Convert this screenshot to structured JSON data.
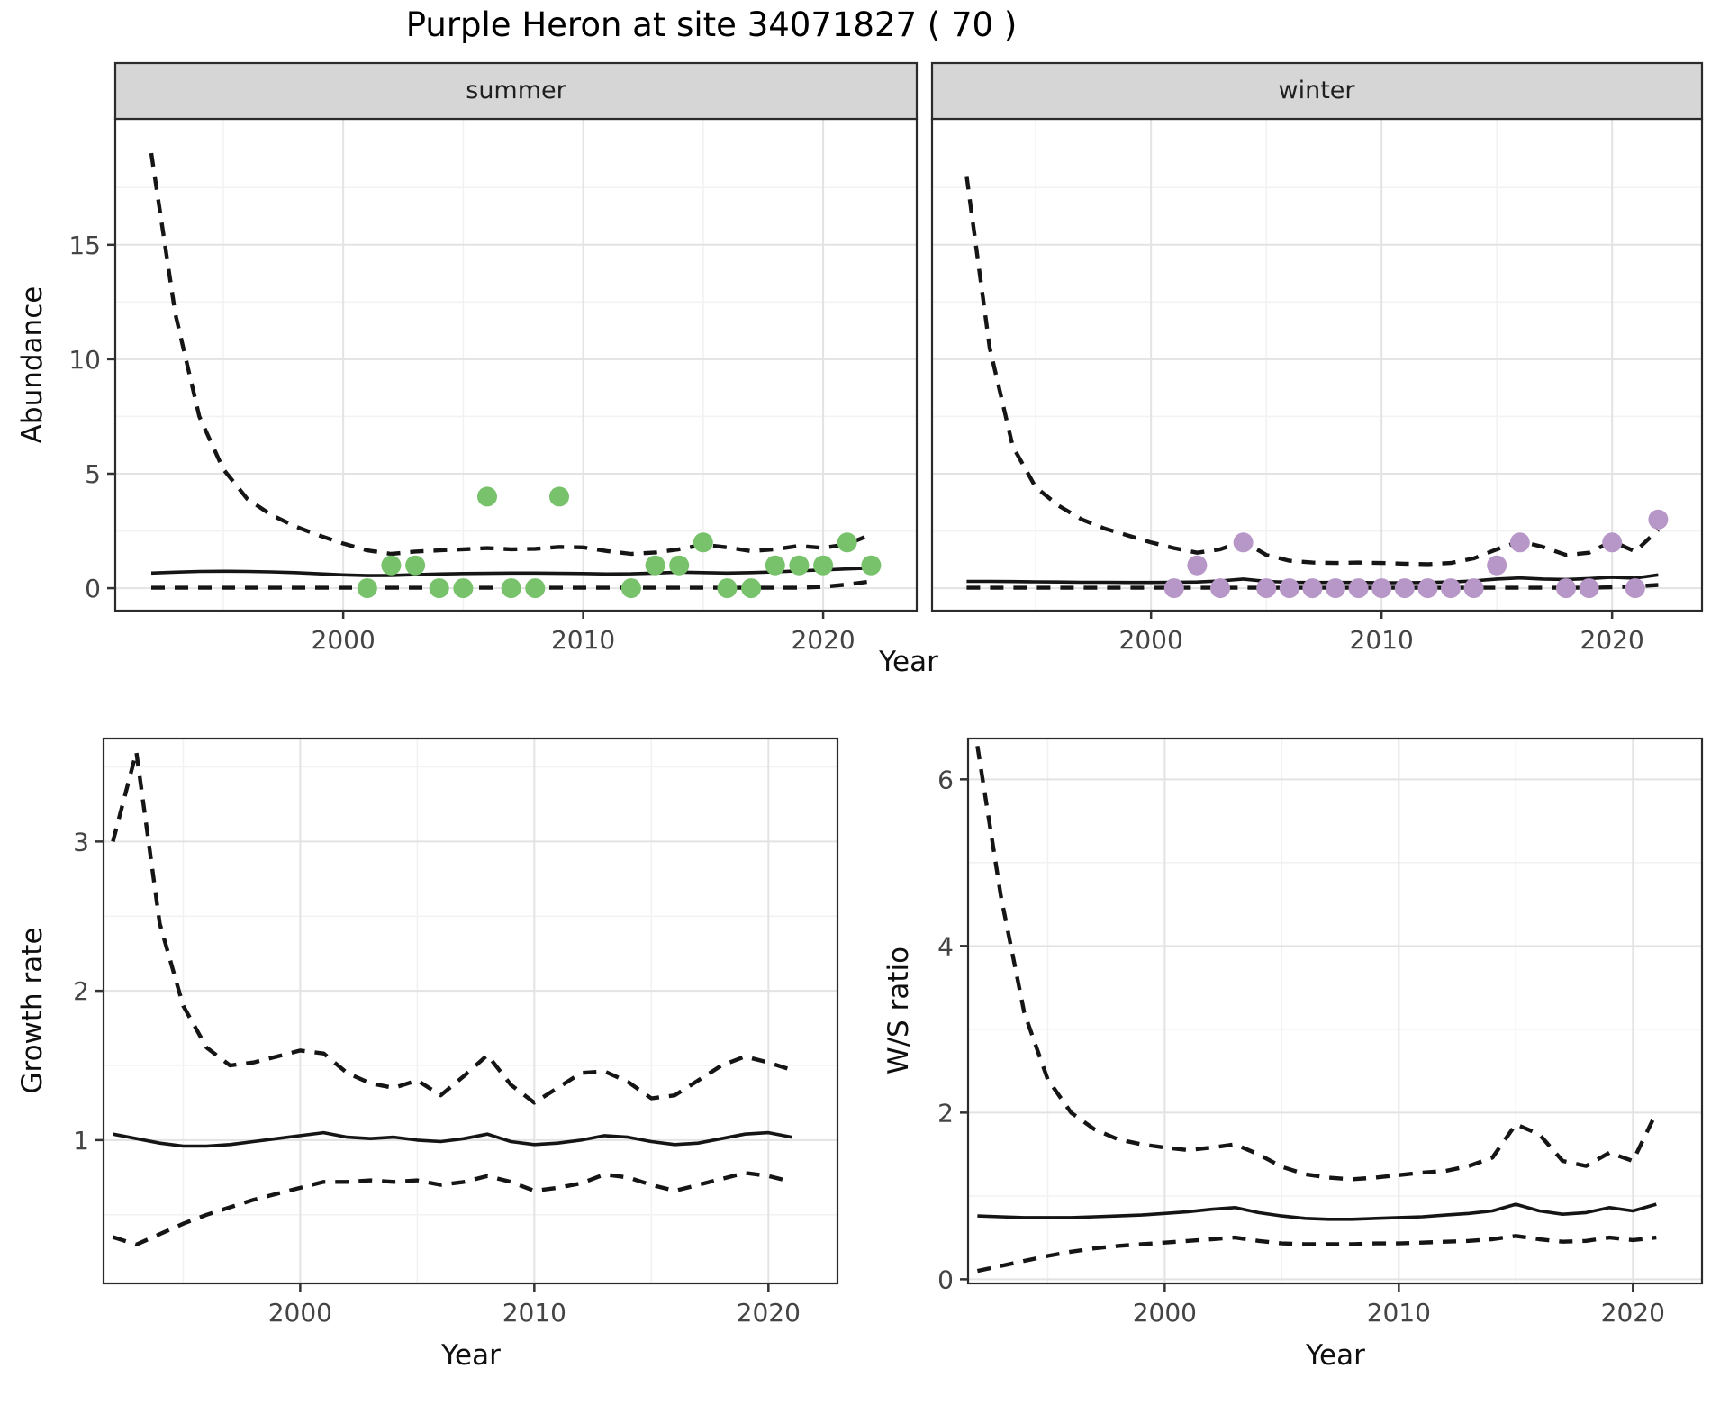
{
  "figure": {
    "title": "Purple Heron at site 34071827 ( 70 )"
  },
  "facets": [
    {
      "label": "summer"
    },
    {
      "label": "winter"
    }
  ],
  "axes": {
    "top": {
      "xlabel": "Year",
      "ylabel": "Abundance"
    },
    "growth": {
      "xlabel": "Year",
      "ylabel": "Growth rate"
    },
    "ws": {
      "xlabel": "Year",
      "ylabel": "W/S ratio"
    }
  },
  "colors": {
    "summer_point": "#77C26B",
    "winter_point": "#B796C8",
    "line": "#151515",
    "grid_major": "#E3E3E3",
    "grid_minor": "#F2F2F2",
    "strip_bg": "#D6D6D6",
    "panel_border": "#2B2B2B",
    "axis_text": "#444444",
    "tick_mark": "#333333",
    "panel_bg": "#FFFFFF"
  },
  "chart_data": [
    {
      "name": "abundance_summer",
      "type": "scatter",
      "facet": "summer",
      "xlabel": "Year",
      "ylabel": "Abundance",
      "xlim": [
        1990.5,
        2023.9
      ],
      "ylim": [
        -0.98,
        20.5
      ],
      "xticks": [
        2000,
        2010,
        2020
      ],
      "xminor": [
        1995,
        2005,
        2015
      ],
      "yticks": [
        0,
        5,
        10,
        15
      ],
      "yminor": [
        2.5,
        7.5,
        12.5,
        17.5
      ],
      "years": [
        1992,
        1993,
        1994,
        1995,
        1996,
        1997,
        1998,
        1999,
        2000,
        2001,
        2002,
        2003,
        2004,
        2005,
        2006,
        2007,
        2008,
        2009,
        2010,
        2011,
        2012,
        2013,
        2014,
        2015,
        2016,
        2017,
        2018,
        2019,
        2020,
        2021,
        2022
      ],
      "series": [
        {
          "name": "estimate",
          "style": "solid",
          "values": [
            0.66,
            0.7,
            0.73,
            0.74,
            0.73,
            0.71,
            0.68,
            0.63,
            0.58,
            0.55,
            0.56,
            0.59,
            0.62,
            0.64,
            0.65,
            0.66,
            0.66,
            0.65,
            0.64,
            0.62,
            0.63,
            0.66,
            0.7,
            0.68,
            0.66,
            0.68,
            0.71,
            0.76,
            0.8,
            0.84,
            0.88
          ]
        },
        {
          "name": "ci_upper",
          "style": "dashed",
          "values": [
            19.0,
            12.0,
            7.5,
            5.2,
            3.9,
            3.2,
            2.7,
            2.3,
            1.95,
            1.65,
            1.5,
            1.6,
            1.65,
            1.7,
            1.75,
            1.7,
            1.72,
            1.8,
            1.78,
            1.62,
            1.5,
            1.56,
            1.7,
            1.9,
            1.78,
            1.62,
            1.7,
            1.85,
            1.76,
            1.92,
            2.35
          ]
        },
        {
          "name": "ci_lower",
          "style": "dashed",
          "values": [
            0.02,
            0.02,
            0.02,
            0.02,
            0.02,
            0.02,
            0.02,
            0.02,
            0.02,
            0.02,
            0.02,
            0.02,
            0.02,
            0.02,
            0.02,
            0.02,
            0.02,
            0.02,
            0.02,
            0.02,
            0.02,
            0.02,
            0.02,
            0.02,
            0.02,
            0.02,
            0.02,
            0.02,
            0.06,
            0.16,
            0.3
          ]
        }
      ],
      "points": {
        "color_key": "summer_point",
        "data": [
          [
            2001,
            0
          ],
          [
            2002,
            1
          ],
          [
            2003,
            1
          ],
          [
            2004,
            0
          ],
          [
            2005,
            0
          ],
          [
            2006,
            4
          ],
          [
            2007,
            0
          ],
          [
            2008,
            0
          ],
          [
            2009,
            4
          ],
          [
            2012,
            0
          ],
          [
            2013,
            1
          ],
          [
            2014,
            1
          ],
          [
            2015,
            2
          ],
          [
            2016,
            0
          ],
          [
            2017,
            0
          ],
          [
            2018,
            1
          ],
          [
            2019,
            1
          ],
          [
            2020,
            1
          ],
          [
            2021,
            2
          ],
          [
            2022,
            1
          ]
        ]
      }
    },
    {
      "name": "abundance_winter",
      "type": "scatter",
      "facet": "winter",
      "xlabel": "Year",
      "ylabel": "Abundance",
      "xlim": [
        1990.5,
        2023.9
      ],
      "ylim": [
        -0.98,
        20.5
      ],
      "xticks": [
        2000,
        2010,
        2020
      ],
      "xminor": [
        1995,
        2005,
        2015
      ],
      "yticks": [
        0,
        5,
        10,
        15
      ],
      "yminor": [
        2.5,
        7.5,
        12.5,
        17.5
      ],
      "years": [
        1992,
        1993,
        1994,
        1995,
        1996,
        1997,
        1998,
        1999,
        2000,
        2001,
        2002,
        2003,
        2004,
        2005,
        2006,
        2007,
        2008,
        2009,
        2010,
        2011,
        2012,
        2013,
        2014,
        2015,
        2016,
        2017,
        2018,
        2019,
        2020,
        2021,
        2022
      ],
      "series": [
        {
          "name": "estimate",
          "style": "solid",
          "values": [
            0.3,
            0.3,
            0.29,
            0.28,
            0.27,
            0.26,
            0.26,
            0.25,
            0.25,
            0.26,
            0.27,
            0.32,
            0.4,
            0.3,
            0.26,
            0.25,
            0.25,
            0.25,
            0.24,
            0.24,
            0.25,
            0.27,
            0.32,
            0.4,
            0.45,
            0.4,
            0.38,
            0.42,
            0.48,
            0.44,
            0.58
          ]
        },
        {
          "name": "ci_upper",
          "style": "dashed",
          "values": [
            18.0,
            10.5,
            6.2,
            4.4,
            3.6,
            3.0,
            2.6,
            2.3,
            2.0,
            1.75,
            1.55,
            1.7,
            2.05,
            1.45,
            1.2,
            1.12,
            1.1,
            1.12,
            1.1,
            1.07,
            1.05,
            1.1,
            1.3,
            1.7,
            2.05,
            1.8,
            1.45,
            1.55,
            2.05,
            1.6,
            2.55
          ]
        },
        {
          "name": "ci_lower",
          "style": "dashed",
          "values": [
            0.02,
            0.02,
            0.02,
            0.02,
            0.02,
            0.02,
            0.02,
            0.02,
            0.02,
            0.02,
            0.02,
            0.02,
            0.02,
            0.02,
            0.02,
            0.02,
            0.02,
            0.02,
            0.02,
            0.02,
            0.02,
            0.02,
            0.02,
            0.02,
            0.02,
            0.02,
            0.02,
            0.02,
            0.04,
            0.08,
            0.14
          ]
        }
      ],
      "points": {
        "color_key": "winter_point",
        "data": [
          [
            2001,
            0
          ],
          [
            2002,
            1
          ],
          [
            2003,
            0
          ],
          [
            2004,
            2
          ],
          [
            2005,
            0
          ],
          [
            2006,
            0
          ],
          [
            2007,
            0
          ],
          [
            2008,
            0
          ],
          [
            2009,
            0
          ],
          [
            2010,
            0
          ],
          [
            2011,
            0
          ],
          [
            2012,
            0
          ],
          [
            2013,
            0
          ],
          [
            2014,
            0
          ],
          [
            2015,
            1
          ],
          [
            2016,
            2
          ],
          [
            2018,
            0
          ],
          [
            2019,
            0
          ],
          [
            2020,
            2
          ],
          [
            2021,
            0
          ],
          [
            2022,
            3
          ]
        ]
      }
    },
    {
      "name": "growth_rate",
      "type": "line",
      "xlabel": "Year",
      "ylabel": "Growth rate",
      "xlim": [
        1991.6,
        2022.95
      ],
      "ylim": [
        0.04,
        3.69
      ],
      "xticks": [
        2000,
        2010,
        2020
      ],
      "xminor": [
        1995,
        2005,
        2015
      ],
      "yticks": [
        1,
        2,
        3
      ],
      "yminor": [
        0.5,
        1.5,
        2.5,
        3.5
      ],
      "years": [
        1992,
        1993,
        1994,
        1995,
        1996,
        1997,
        1998,
        1999,
        2000,
        2001,
        2002,
        2003,
        2004,
        2005,
        2006,
        2007,
        2008,
        2009,
        2010,
        2011,
        2012,
        2013,
        2014,
        2015,
        2016,
        2017,
        2018,
        2019,
        2020,
        2021
      ],
      "series": [
        {
          "name": "estimate",
          "style": "solid",
          "values": [
            1.04,
            1.01,
            0.98,
            0.96,
            0.96,
            0.97,
            0.99,
            1.01,
            1.03,
            1.05,
            1.02,
            1.01,
            1.02,
            1.0,
            0.99,
            1.01,
            1.04,
            0.99,
            0.97,
            0.98,
            1.0,
            1.03,
            1.02,
            0.99,
            0.97,
            0.98,
            1.01,
            1.04,
            1.05,
            1.02
          ]
        },
        {
          "name": "ci_upper",
          "style": "dashed",
          "values": [
            3.0,
            3.6,
            2.45,
            1.9,
            1.62,
            1.5,
            1.52,
            1.56,
            1.6,
            1.58,
            1.45,
            1.38,
            1.35,
            1.4,
            1.3,
            1.43,
            1.57,
            1.37,
            1.25,
            1.35,
            1.45,
            1.46,
            1.39,
            1.28,
            1.3,
            1.4,
            1.5,
            1.56,
            1.52,
            1.47
          ]
        },
        {
          "name": "ci_lower",
          "style": "dashed",
          "values": [
            0.35,
            0.3,
            0.37,
            0.44,
            0.5,
            0.55,
            0.6,
            0.64,
            0.68,
            0.72,
            0.72,
            0.73,
            0.72,
            0.73,
            0.7,
            0.72,
            0.76,
            0.72,
            0.66,
            0.68,
            0.71,
            0.77,
            0.75,
            0.7,
            0.66,
            0.7,
            0.74,
            0.78,
            0.76,
            0.72
          ]
        }
      ]
    },
    {
      "name": "ws_ratio",
      "type": "line",
      "xlabel": "Year",
      "ylabel": "W/S ratio",
      "xlim": [
        1991.6,
        2022.95
      ],
      "ylim": [
        -0.05,
        6.49
      ],
      "xticks": [
        2000,
        2010,
        2020
      ],
      "xminor": [
        1995,
        2005,
        2015
      ],
      "yticks": [
        0,
        2,
        4,
        6
      ],
      "yminor": [
        1,
        3,
        5
      ],
      "years": [
        1992,
        1993,
        1994,
        1995,
        1996,
        1997,
        1998,
        1999,
        2000,
        2001,
        2002,
        2003,
        2004,
        2005,
        2006,
        2007,
        2008,
        2009,
        2010,
        2011,
        2012,
        2013,
        2014,
        2015,
        2016,
        2017,
        2018,
        2019,
        2020,
        2021
      ],
      "series": [
        {
          "name": "estimate",
          "style": "solid",
          "values": [
            0.76,
            0.75,
            0.74,
            0.74,
            0.74,
            0.75,
            0.76,
            0.77,
            0.79,
            0.81,
            0.84,
            0.86,
            0.8,
            0.76,
            0.73,
            0.72,
            0.72,
            0.73,
            0.74,
            0.75,
            0.77,
            0.79,
            0.82,
            0.9,
            0.82,
            0.78,
            0.8,
            0.86,
            0.82,
            0.9
          ]
        },
        {
          "name": "ci_upper",
          "style": "dashed",
          "values": [
            6.4,
            4.6,
            3.2,
            2.4,
            2.0,
            1.8,
            1.68,
            1.62,
            1.58,
            1.55,
            1.58,
            1.62,
            1.5,
            1.35,
            1.26,
            1.22,
            1.2,
            1.22,
            1.25,
            1.28,
            1.3,
            1.36,
            1.46,
            1.86,
            1.74,
            1.42,
            1.36,
            1.52,
            1.42,
            2.0
          ]
        },
        {
          "name": "ci_lower",
          "style": "dashed",
          "values": [
            0.1,
            0.16,
            0.22,
            0.28,
            0.33,
            0.37,
            0.4,
            0.42,
            0.44,
            0.46,
            0.48,
            0.5,
            0.46,
            0.43,
            0.42,
            0.42,
            0.42,
            0.43,
            0.43,
            0.44,
            0.45,
            0.46,
            0.48,
            0.52,
            0.48,
            0.45,
            0.46,
            0.5,
            0.47,
            0.5
          ]
        }
      ]
    }
  ]
}
